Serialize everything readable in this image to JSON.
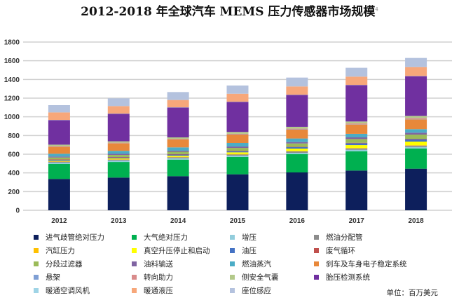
{
  "chart_data": {
    "type": "bar",
    "stacked": true,
    "title": "2012-2018 年全球汽车 MEMS 压力传感器市场规模",
    "title_footnote": "4",
    "xlabel": "",
    "ylabel": "",
    "unit_note": "单位：百万美元",
    "ylim": [
      0,
      1800
    ],
    "yticks": [
      0,
      200,
      400,
      600,
      800,
      1000,
      1200,
      1400,
      1600,
      1800
    ],
    "grid": true,
    "legend_position": "bottom",
    "categories": [
      "2012",
      "2013",
      "2014",
      "2015",
      "2016",
      "2017",
      "2018"
    ],
    "series": [
      {
        "name": "进气歧管绝对压力",
        "color": "#0d1f5c",
        "values": [
          335,
          350,
          365,
          385,
          405,
          425,
          445
        ]
      },
      {
        "name": "大气绝对压力",
        "color": "#00b050",
        "values": [
          160,
          167,
          177,
          185,
          195,
          207,
          217
        ]
      },
      {
        "name": "增压",
        "color": "#92cddc",
        "values": [
          15,
          15,
          15,
          15,
          15,
          15,
          15
        ]
      },
      {
        "name": "燃油分配管",
        "color": "#8c8c8c",
        "values": [
          10,
          10,
          10,
          12,
          15,
          15,
          15
        ]
      },
      {
        "name": "汽缸压力",
        "color": "#ffc000",
        "values": [
          5,
          5,
          5,
          5,
          5,
          5,
          5
        ]
      },
      {
        "name": "真空升压停止和启动",
        "color": "#ffff00",
        "values": [
          5,
          8,
          12,
          18,
          25,
          30,
          38
        ]
      },
      {
        "name": "油压",
        "color": "#4472c4",
        "values": [
          10,
          10,
          12,
          12,
          15,
          20,
          25
        ]
      },
      {
        "name": "废气循环",
        "color": "#c0504d",
        "values": [
          5,
          5,
          5,
          5,
          5,
          5,
          5
        ]
      },
      {
        "name": "分段过滤器",
        "color": "#9bbb59",
        "values": [
          20,
          22,
          25,
          30,
          35,
          40,
          45
        ]
      },
      {
        "name": "油料输送",
        "color": "#8064a2",
        "values": [
          10,
          12,
          12,
          15,
          15,
          18,
          20
        ]
      },
      {
        "name": "燃油蒸汽",
        "color": "#4bacc6",
        "values": [
          30,
          32,
          35,
          38,
          38,
          38,
          38
        ]
      },
      {
        "name": "刹车及车身电子稳定系统",
        "color": "#e8883a",
        "values": [
          75,
          80,
          85,
          90,
          95,
          100,
          105
        ]
      },
      {
        "name": "悬架",
        "color": "#7f9fd4",
        "values": [
          2,
          2,
          2,
          3,
          3,
          3,
          3
        ]
      },
      {
        "name": "转向助力",
        "color": "#d98b8b",
        "values": [
          5,
          5,
          5,
          5,
          7,
          8,
          10
        ]
      },
      {
        "name": "侧安全气囊",
        "color": "#b3c98a",
        "values": [
          15,
          15,
          15,
          20,
          20,
          21,
          24
        ]
      },
      {
        "name": "胎压检测系统",
        "color": "#7030a0",
        "values": [
          263,
          295,
          320,
          322,
          342,
          390,
          425
        ]
      },
      {
        "name": "暖通空调风机",
        "color": "#9fd4e6",
        "values": [
          2,
          2,
          2,
          2,
          2,
          2,
          2
        ]
      },
      {
        "name": "暖通液压",
        "color": "#f7a77a",
        "values": [
          80,
          80,
          78,
          85,
          88,
          88,
          95
        ]
      },
      {
        "name": "座位感应",
        "color": "#b4c2de",
        "values": [
          78,
          83,
          85,
          88,
          95,
          95,
          98
        ]
      }
    ]
  }
}
